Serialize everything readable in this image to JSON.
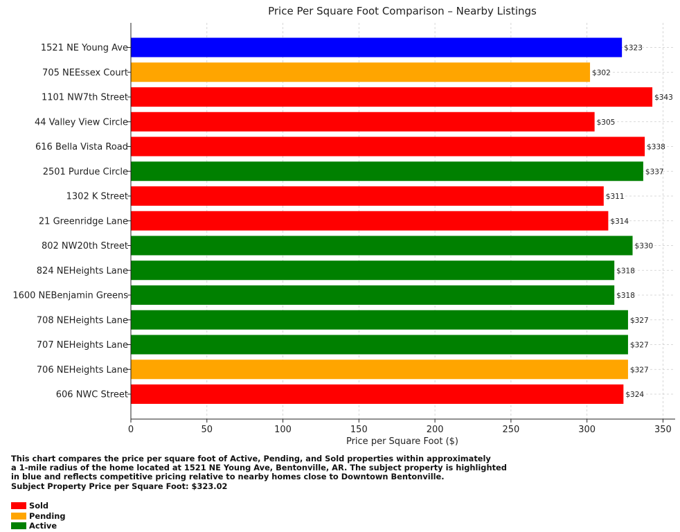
{
  "chart_data": {
    "type": "bar",
    "orientation": "horizontal",
    "title": "Price Per Square Foot Comparison – Nearby Listings",
    "xlabel": "Price per Square Foot ($)",
    "ylabel": "",
    "xlim": [
      0,
      358
    ],
    "xticks": [
      0,
      50,
      100,
      150,
      200,
      250,
      300,
      350
    ],
    "grid": true,
    "value_label_prefix": "$",
    "categories": [
      "1521 NE Young Ave",
      "705 NEEssex Court",
      "1101 NW7th Street",
      "44 Valley View Circle",
      "616 Bella Vista Road",
      "2501 Purdue Circle",
      "1302 K Street",
      "21 Greenridge Lane",
      "802 NW20th Street",
      "824 NEHeights Lane",
      "1600 NEBenjamin Greens",
      "708 NEHeights Lane",
      "707 NEHeights Lane",
      "706 NEHeights Lane",
      "606 NWC Street"
    ],
    "values": [
      323,
      302,
      343,
      305,
      338,
      337,
      311,
      314,
      330,
      318,
      318,
      327,
      327,
      327,
      324
    ],
    "statuses": [
      "Subject",
      "Pending",
      "Sold",
      "Sold",
      "Sold",
      "Active",
      "Sold",
      "Sold",
      "Active",
      "Active",
      "Active",
      "Active",
      "Active",
      "Pending",
      "Sold"
    ],
    "colors": {
      "Subject": "#0000ff",
      "Sold": "#ff0000",
      "Pending": "#ffa500",
      "Active": "#008000"
    }
  },
  "caption": {
    "lines": [
      "This chart compares the price per square foot of Active, Pending, and Sold properties within approximately",
      "a 1-mile radius of the home located at 1521 NE Young Ave, Bentonville, AR. The subject property is highlighted",
      "in blue and reflects competitive pricing relative to nearby homes close to Downtown Bentonville.",
      "Subject Property Price per Square Foot: $323.02"
    ]
  },
  "legend": {
    "items": [
      {
        "label": "Sold",
        "color": "#ff0000"
      },
      {
        "label": "Pending",
        "color": "#ffa500"
      },
      {
        "label": "Active",
        "color": "#008000"
      }
    ]
  }
}
